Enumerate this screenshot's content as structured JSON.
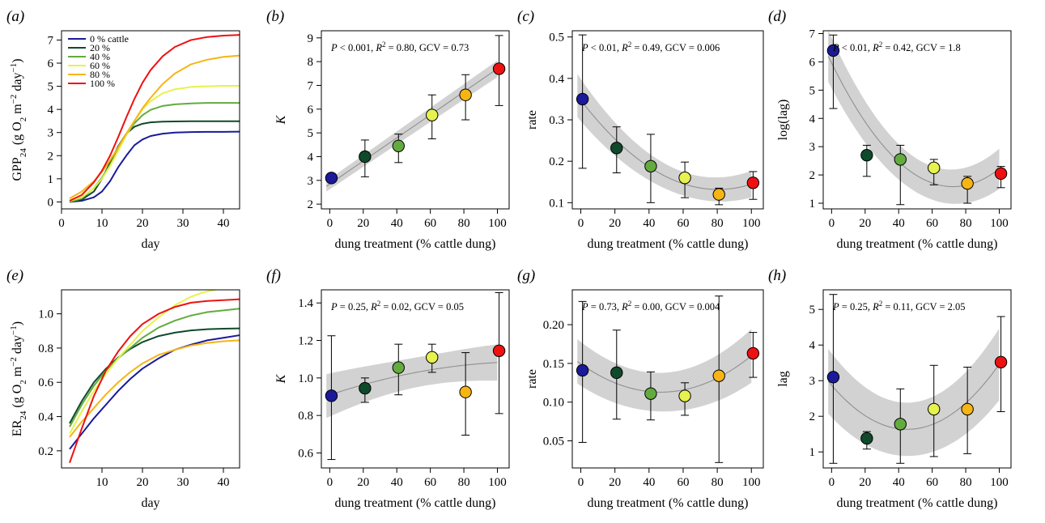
{
  "colors": {
    "t0": "#1a1a9a",
    "t20": "#0f4a2b",
    "t40": "#63ab3e",
    "t60": "#e6f24d",
    "t80": "#f6b514",
    "t100": "#ee1111",
    "band": "#d2d2d2",
    "fit": "#909090"
  },
  "chart_data": [
    {
      "id": "a",
      "panel_label": "(a)",
      "type": "line",
      "xlabel": "day",
      "ylabel": "GPP24 (g O2 m−2 day−1)",
      "xlim": [
        0,
        44
      ],
      "ylim": [
        -0.3,
        7.4
      ],
      "xticks": [
        0,
        10,
        20,
        30,
        40
      ],
      "yticks": [
        0,
        1,
        2,
        3,
        4,
        5,
        6,
        7
      ],
      "legend": {
        "position": "top-left",
        "entries": [
          "0 % cattle",
          "20 %",
          "40 %",
          "60 %",
          "80 %",
          "100 %"
        ]
      },
      "series": [
        {
          "color_key": "t0",
          "x": [
            2,
            5,
            8,
            10,
            12,
            14,
            16,
            18,
            20,
            22,
            25,
            28,
            32,
            36,
            40,
            44
          ],
          "y": [
            0,
            0.05,
            0.2,
            0.45,
            0.9,
            1.5,
            2.0,
            2.45,
            2.7,
            2.85,
            2.95,
            3.0,
            3.02,
            3.03,
            3.03,
            3.04
          ]
        },
        {
          "color_key": "t20",
          "x": [
            2,
            5,
            8,
            10,
            12,
            14,
            16,
            18,
            20,
            22,
            25,
            28,
            32,
            36,
            40,
            44
          ],
          "y": [
            0,
            0.1,
            0.45,
            1.0,
            1.7,
            2.4,
            2.95,
            3.25,
            3.38,
            3.44,
            3.47,
            3.48,
            3.49,
            3.49,
            3.49,
            3.49
          ]
        },
        {
          "color_key": "t40",
          "x": [
            2,
            5,
            8,
            10,
            12,
            14,
            16,
            18,
            20,
            22,
            25,
            28,
            32,
            36,
            40,
            44
          ],
          "y": [
            0,
            0.15,
            0.6,
            1.05,
            1.6,
            2.25,
            2.9,
            3.4,
            3.75,
            3.98,
            4.15,
            4.22,
            4.26,
            4.28,
            4.28,
            4.28
          ]
        },
        {
          "color_key": "t60",
          "x": [
            2,
            5,
            8,
            10,
            12,
            14,
            16,
            18,
            20,
            22,
            25,
            28,
            32,
            36,
            40,
            44
          ],
          "y": [
            0.05,
            0.2,
            0.6,
            1.0,
            1.55,
            2.2,
            2.9,
            3.5,
            4.0,
            4.35,
            4.7,
            4.87,
            4.97,
            5.0,
            5.02,
            5.02
          ]
        },
        {
          "color_key": "t80",
          "x": [
            2,
            5,
            8,
            10,
            12,
            14,
            16,
            18,
            20,
            22,
            25,
            28,
            32,
            36,
            40,
            44
          ],
          "y": [
            0.15,
            0.45,
            0.9,
            1.3,
            1.8,
            2.35,
            2.95,
            3.5,
            4.05,
            4.5,
            5.1,
            5.55,
            5.95,
            6.15,
            6.27,
            6.33
          ]
        },
        {
          "color_key": "t100",
          "x": [
            2,
            5,
            8,
            10,
            12,
            14,
            16,
            18,
            20,
            22,
            25,
            28,
            32,
            36,
            40,
            44
          ],
          "y": [
            0.05,
            0.3,
            0.85,
            1.35,
            2.0,
            2.8,
            3.65,
            4.45,
            5.15,
            5.7,
            6.3,
            6.7,
            7.0,
            7.13,
            7.19,
            7.22
          ]
        }
      ]
    },
    {
      "id": "b",
      "panel_label": "(b)",
      "type": "scatter",
      "xlabel": "dung treatment (% cattle dung)",
      "ylabel": "K",
      "stat_text": "P < 0.001, R2 = 0.80, GCV = 0.73",
      "xlim": [
        -5,
        107
      ],
      "ylim": [
        1.8,
        9.3
      ],
      "xticks": [
        0,
        20,
        40,
        60,
        80,
        100
      ],
      "yticks": [
        2,
        3,
        4,
        5,
        6,
        7,
        8,
        9
      ],
      "points": {
        "x": [
          1,
          21,
          41,
          61,
          81,
          101
        ],
        "y": [
          3.1,
          4.0,
          4.45,
          5.75,
          6.6,
          7.7
        ],
        "ylo": [
          3.0,
          3.15,
          3.75,
          4.75,
          5.55,
          6.15
        ],
        "yhi": [
          3.15,
          4.7,
          4.95,
          6.6,
          7.45,
          9.1
        ]
      },
      "fit": {
        "x": [
          -2,
          100
        ],
        "y": [
          2.75,
          7.7
        ],
        "band": [
          0.22,
          0.35
        ]
      }
    },
    {
      "id": "c",
      "panel_label": "(c)",
      "type": "scatter",
      "xlabel": "dung treatment (% cattle dung)",
      "ylabel": "rate",
      "stat_text": "P < 0.01, R2 = 0.49, GCV = 0.006",
      "xlim": [
        -5,
        107
      ],
      "ylim": [
        0.085,
        0.515
      ],
      "xticks": [
        0,
        20,
        40,
        60,
        80,
        100
      ],
      "yticks": [
        0.1,
        0.2,
        0.3,
        0.4,
        0.5
      ],
      "points": {
        "x": [
          1,
          21,
          41,
          61,
          81,
          101
        ],
        "y": [
          0.35,
          0.232,
          0.188,
          0.16,
          0.12,
          0.148
        ],
        "ylo": [
          0.183,
          0.172,
          0.1,
          0.112,
          0.095,
          0.108
        ],
        "yhi": [
          0.505,
          0.283,
          0.265,
          0.198,
          0.135,
          0.175
        ]
      },
      "fit": {
        "x": [
          -2,
          100
        ],
        "y": [
          0.345,
          0.12
        ],
        "band": [
          0.04,
          0.02
        ]
      }
    },
    {
      "id": "d",
      "panel_label": "(d)",
      "type": "scatter",
      "xlabel": "dung treatment (% cattle dung)",
      "ylabel": "log(lag)",
      "stat_text": "P < 0.01, R2 = 0.42, GCV = 1.8",
      "xlim": [
        -5,
        107
      ],
      "ylim": [
        0.8,
        7.1
      ],
      "xticks": [
        0,
        20,
        40,
        60,
        80,
        100
      ],
      "yticks": [
        1,
        2,
        3,
        4,
        5,
        6,
        7
      ],
      "points": {
        "x": [
          1,
          21,
          41,
          61,
          81,
          101
        ],
        "y": [
          6.4,
          2.7,
          2.55,
          2.25,
          1.7,
          2.05
        ],
        "ylo": [
          4.35,
          1.95,
          0.95,
          1.65,
          1.0,
          1.55
        ],
        "yhi": [
          6.95,
          3.05,
          3.05,
          2.55,
          1.95,
          2.3
        ]
      },
      "fit": {
        "x": [
          -2,
          100
        ],
        "y": [
          4.75,
          1.8
        ],
        "band": [
          0.7,
          0.5
        ]
      }
    },
    {
      "id": "e",
      "panel_label": "(e)",
      "type": "line",
      "xlabel": "day",
      "ylabel": "ER24 (g O2 m−2 day−1)",
      "xlim": [
        0,
        44
      ],
      "ylim": [
        0.1,
        1.14
      ],
      "xticks": [
        10,
        20,
        30,
        40
      ],
      "yticks": [
        0.2,
        0.4,
        0.6,
        0.8,
        1.0
      ],
      "series": [
        {
          "color_key": "t0",
          "x": [
            2,
            5,
            8,
            11,
            14,
            17,
            20,
            24,
            28,
            32,
            36,
            40,
            44
          ],
          "y": [
            0.21,
            0.3,
            0.39,
            0.47,
            0.55,
            0.62,
            0.68,
            0.74,
            0.79,
            0.82,
            0.845,
            0.86,
            0.875
          ]
        },
        {
          "color_key": "t20",
          "x": [
            2,
            5,
            8,
            11,
            14,
            17,
            20,
            24,
            28,
            32,
            36,
            40,
            44
          ],
          "y": [
            0.36,
            0.49,
            0.6,
            0.68,
            0.745,
            0.795,
            0.835,
            0.87,
            0.89,
            0.903,
            0.91,
            0.913,
            0.915
          ]
        },
        {
          "color_key": "t40",
          "x": [
            2,
            5,
            8,
            11,
            14,
            17,
            20,
            24,
            28,
            32,
            36,
            40,
            44
          ],
          "y": [
            0.34,
            0.47,
            0.58,
            0.67,
            0.74,
            0.8,
            0.86,
            0.92,
            0.96,
            0.99,
            1.01,
            1.02,
            1.03
          ]
        },
        {
          "color_key": "t60",
          "x": [
            2,
            5,
            8,
            11,
            14,
            17,
            20,
            24,
            28,
            32,
            35,
            38
          ],
          "y": [
            0.3,
            0.43,
            0.55,
            0.65,
            0.74,
            0.82,
            0.9,
            0.98,
            1.05,
            1.1,
            1.125,
            1.14
          ]
        },
        {
          "color_key": "t80",
          "x": [
            2,
            5,
            8,
            11,
            14,
            17,
            20,
            24,
            28,
            32,
            36,
            40,
            44
          ],
          "y": [
            0.28,
            0.37,
            0.45,
            0.53,
            0.6,
            0.66,
            0.71,
            0.76,
            0.79,
            0.815,
            0.83,
            0.84,
            0.845
          ]
        },
        {
          "color_key": "t100",
          "x": [
            2,
            5,
            8,
            11,
            14,
            17,
            20,
            24,
            28,
            32,
            36,
            40,
            44
          ],
          "y": [
            0.13,
            0.33,
            0.52,
            0.67,
            0.78,
            0.87,
            0.94,
            1.0,
            1.04,
            1.065,
            1.075,
            1.08,
            1.085
          ]
        }
      ]
    },
    {
      "id": "f",
      "panel_label": "(f)",
      "type": "scatter",
      "xlabel": "dung treatment (% cattle dung)",
      "ylabel": "K",
      "stat_text": "P = 0.25, R2 = 0.02, GCV = 0.05",
      "xlim": [
        -5,
        107
      ],
      "ylim": [
        0.52,
        1.47
      ],
      "xticks": [
        0,
        20,
        40,
        60,
        80,
        100
      ],
      "yticks": [
        0.6,
        0.8,
        1.0,
        1.2,
        1.4
      ],
      "points": {
        "x": [
          1,
          21,
          41,
          61,
          81,
          101
        ],
        "y": [
          0.905,
          0.945,
          1.055,
          1.11,
          0.925,
          1.145
        ],
        "ylo": [
          0.565,
          0.87,
          0.91,
          1.03,
          0.695,
          0.81
        ],
        "yhi": [
          1.225,
          1.0,
          1.18,
          1.18,
          1.135,
          1.455
        ]
      },
      "fit": {
        "x": [
          -2,
          100
        ],
        "y": [
          0.915,
          1.09
        ],
        "band": [
          0.09,
          0.07
        ]
      }
    },
    {
      "id": "g",
      "panel_label": "(g)",
      "type": "scatter",
      "xlabel": "dung treatment (% cattle dung)",
      "ylabel": "rate",
      "stat_text": "P = 0.73, R2 = 0.00, GCV = 0.004",
      "xlim": [
        -5,
        107
      ],
      "ylim": [
        0.015,
        0.245
      ],
      "xticks": [
        0,
        20,
        40,
        60,
        80,
        100
      ],
      "yticks": [
        0.05,
        0.1,
        0.15,
        0.2
      ],
      "points": {
        "x": [
          1,
          21,
          41,
          61,
          81,
          101
        ],
        "y": [
          0.141,
          0.138,
          0.111,
          0.108,
          0.134,
          0.163
        ],
        "ylo": [
          0.048,
          0.078,
          0.077,
          0.083,
          0.022,
          0.132
        ],
        "yhi": [
          0.23,
          0.193,
          0.139,
          0.125,
          0.237,
          0.19
        ]
      },
      "fit": {
        "x": [
          -2,
          100
        ],
        "y": [
          0.137,
          0.146
        ],
        "band": [
          0.022,
          0.028
        ]
      }
    },
    {
      "id": "h",
      "panel_label": "(h)",
      "type": "scatter",
      "xlabel": "dung treatment (% cattle dung)",
      "ylabel": "lag",
      "stat_text": "P = 0.25, R2 = 0.11, GCV = 2.05",
      "xlim": [
        -5,
        107
      ],
      "ylim": [
        0.55,
        5.55
      ],
      "xticks": [
        0,
        20,
        40,
        60,
        80,
        100
      ],
      "yticks": [
        1,
        2,
        3,
        4,
        5
      ],
      "points": {
        "x": [
          1,
          21,
          41,
          61,
          81,
          101
        ],
        "y": [
          3.1,
          1.38,
          1.78,
          2.2,
          2.2,
          3.52
        ],
        "ylo": [
          0.68,
          1.08,
          0.68,
          0.87,
          0.95,
          2.13
        ],
        "yhi": [
          5.42,
          1.57,
          2.77,
          3.43,
          3.38,
          4.8
        ]
      },
      "fit": {
        "x": [
          -2,
          100
        ],
        "y": [
          2.6,
          3.3
        ],
        "band": [
          0.7,
          0.8
        ]
      }
    }
  ]
}
